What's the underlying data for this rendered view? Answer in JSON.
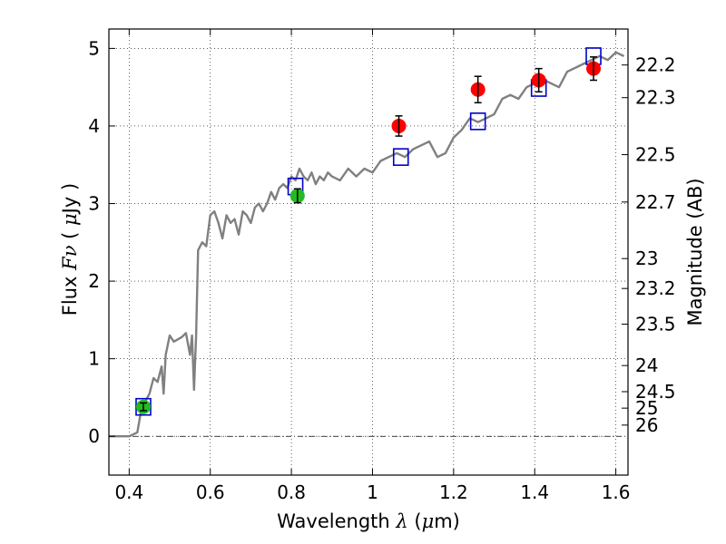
{
  "chart_data": {
    "type": "line",
    "xlabel": "Wavelength  λ (μm)",
    "ylabel": "Flux  Fν  ( μJy )",
    "y2label": "Magnitude (AB)",
    "xlim": [
      0.35,
      1.63
    ],
    "ylim": [
      -0.5,
      5.25
    ],
    "grid": true,
    "x_ticks": [
      0.4,
      0.6,
      0.8,
      1.0,
      1.2,
      1.4,
      1.6
    ],
    "x_tick_labels": [
      "0.4",
      "0.6",
      "0.8",
      "1",
      "1.2",
      "1.4",
      "1.6"
    ],
    "y_ticks": [
      0,
      1,
      2,
      3,
      4,
      5
    ],
    "y_tick_labels": [
      "0",
      "1",
      "2",
      "3",
      "4",
      "5"
    ],
    "y2_tick_labels": [
      "22.2",
      "22.3",
      "22.5",
      "22.7",
      "23",
      "23.2",
      "23.5",
      "24",
      "24.5",
      "25",
      "26"
    ],
    "y2_zero_point": 23.9,
    "colors": {
      "model": "#808080",
      "red_points": "#ff0000",
      "green_points": "#22bb22",
      "model_boxes": "#0000cc"
    },
    "series": [
      {
        "kind": "line",
        "x": [
          0.35,
          0.4,
          0.42,
          0.43,
          0.44,
          0.45,
          0.46,
          0.47,
          0.48,
          0.485,
          0.49,
          0.5,
          0.51,
          0.52,
          0.53,
          0.54,
          0.55,
          0.555,
          0.56,
          0.565,
          0.57,
          0.58,
          0.59,
          0.6,
          0.61,
          0.62,
          0.63,
          0.64,
          0.65,
          0.66,
          0.67,
          0.68,
          0.69,
          0.7,
          0.71,
          0.72,
          0.73,
          0.74,
          0.75,
          0.76,
          0.77,
          0.78,
          0.79,
          0.8,
          0.81,
          0.82,
          0.83,
          0.84,
          0.85,
          0.86,
          0.87,
          0.88,
          0.89,
          0.9,
          0.92,
          0.94,
          0.96,
          0.98,
          1.0,
          1.02,
          1.04,
          1.06,
          1.08,
          1.1,
          1.12,
          1.14,
          1.16,
          1.18,
          1.2,
          1.22,
          1.24,
          1.26,
          1.28,
          1.3,
          1.32,
          1.34,
          1.36,
          1.38,
          1.4,
          1.42,
          1.44,
          1.46,
          1.48,
          1.5,
          1.52,
          1.54,
          1.56,
          1.58,
          1.6,
          1.62
        ],
        "y": [
          0.0,
          0.0,
          0.05,
          0.35,
          0.45,
          0.55,
          0.75,
          0.7,
          0.9,
          0.55,
          1.05,
          1.3,
          1.22,
          1.25,
          1.28,
          1.33,
          1.05,
          1.3,
          0.6,
          1.3,
          2.4,
          2.5,
          2.45,
          2.85,
          2.9,
          2.75,
          2.55,
          2.85,
          2.75,
          2.8,
          2.6,
          2.9,
          2.85,
          2.75,
          2.95,
          3.0,
          2.9,
          3.0,
          3.15,
          3.05,
          3.2,
          3.25,
          3.2,
          3.35,
          3.3,
          3.45,
          3.35,
          3.3,
          3.4,
          3.25,
          3.35,
          3.3,
          3.4,
          3.35,
          3.3,
          3.45,
          3.35,
          3.45,
          3.4,
          3.55,
          3.6,
          3.65,
          3.6,
          3.7,
          3.75,
          3.8,
          3.6,
          3.65,
          3.85,
          3.95,
          4.1,
          4.05,
          4.1,
          4.15,
          4.35,
          4.4,
          4.35,
          4.5,
          4.55,
          4.6,
          4.55,
          4.5,
          4.7,
          4.75,
          4.8,
          4.85,
          4.9,
          4.85,
          4.95,
          4.9
        ]
      },
      {
        "kind": "points",
        "marker": "circle",
        "color": "red",
        "x": [
          1.065,
          1.26,
          1.41,
          1.545
        ],
        "y": [
          4.0,
          4.47,
          4.59,
          4.74
        ],
        "yerr": [
          0.13,
          0.17,
          0.15,
          0.15
        ]
      },
      {
        "kind": "points",
        "marker": "circle",
        "color": "green",
        "x": [
          0.435,
          0.815
        ],
        "y": [
          0.38,
          3.1
        ],
        "yerr": [
          0.05,
          0.09
        ]
      },
      {
        "kind": "points",
        "marker": "square",
        "color": "blue",
        "x": [
          0.435,
          0.81,
          1.07,
          1.26,
          1.41,
          1.545
        ],
        "y": [
          0.38,
          3.22,
          3.6,
          4.06,
          4.49,
          4.9
        ]
      }
    ]
  }
}
